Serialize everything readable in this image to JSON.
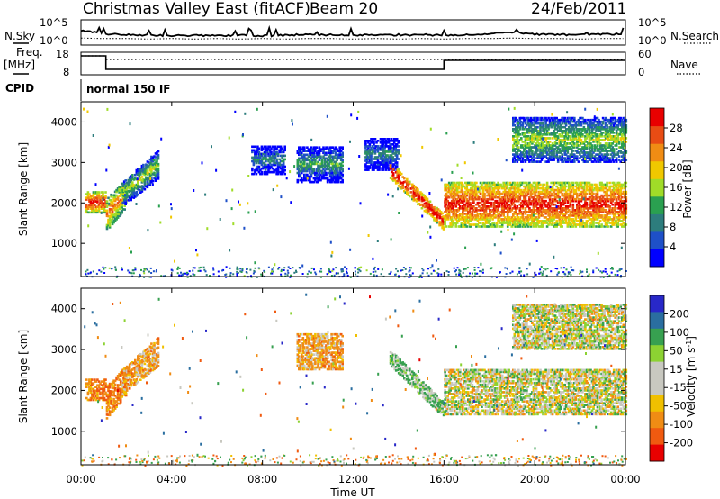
{
  "header": {
    "title": "Christmas Valley East (fitACF)",
    "beam": "Beam 20",
    "date": "24/Feb/2011"
  },
  "panels": {
    "nsky": {
      "label": "N.Sky",
      "right_label": "N.Search",
      "left_ticks": [
        "10^5",
        "10^0"
      ],
      "right_ticks": [
        "10^5",
        "10^0"
      ]
    },
    "freq": {
      "label_line1": "Freq.",
      "label_line2": "[MHz]",
      "right_label": "Nave",
      "left_ticks": [
        "18",
        "8"
      ],
      "right_ticks": [
        "60",
        "0"
      ]
    },
    "cpid": {
      "label": "CPID",
      "text": "normal 150 IF"
    }
  },
  "chart_data": [
    {
      "type": "line",
      "panel": "N.Sky / N.Search",
      "x": [
        "00:00",
        "01:00",
        "02:00",
        "03:00",
        "04:00",
        "05:00",
        "06:00",
        "07:00",
        "08:00",
        "09:00",
        "10:00",
        "11:00",
        "12:00",
        "13:00",
        "14:00",
        "15:00",
        "16:00",
        "17:00",
        "18:00",
        "19:00",
        "20:00",
        "21:00",
        "22:00",
        "23:00",
        "24:00"
      ],
      "series": [
        {
          "name": "N.Sky",
          "values": [
            3.0,
            2.2,
            2.0,
            1.9,
            1.8,
            1.9,
            1.8,
            1.9,
            1.8,
            1.9,
            2.0,
            2.0,
            1.9,
            2.0,
            1.9,
            2.0,
            1.9,
            2.0,
            2.2,
            2.6,
            2.1,
            2.0,
            2.0,
            2.1,
            2.2
          ]
        },
        {
          "name": "N.Search",
          "values": [
            1.3,
            1.2,
            1.2,
            1.1,
            1.2,
            1.1,
            1.2,
            1.1,
            1.2,
            1.1,
            1.2,
            1.2,
            1.1,
            1.2,
            1.1,
            1.2,
            1.1,
            1.2,
            1.2,
            1.3,
            1.2,
            1.2,
            1.1,
            1.2,
            1.2
          ]
        }
      ]
    },
    {
      "type": "line",
      "panel": "Freq. / Nave",
      "series": [
        {
          "name": "Freq.",
          "x_hours": [
            0,
            1.1,
            1.1,
            16,
            16,
            24
          ],
          "values": [
            18,
            18,
            10.5,
            10.5,
            15.5,
            15.5
          ]
        },
        {
          "name": "Nave",
          "x_hours": [
            0,
            1.1,
            1.1,
            24
          ],
          "values": [
            18,
            18,
            16,
            16
          ]
        }
      ]
    },
    {
      "type": "heatmap",
      "title": "Power",
      "ylabel": "Slant Range [km]",
      "ylim": [
        180,
        4500
      ],
      "yticks": [
        "1000",
        "2000",
        "3000",
        "4000"
      ],
      "colorbar": {
        "label": "Power [dB]",
        "ticks": [
          "4",
          "8",
          "12",
          "16",
          "20",
          "24",
          "28"
        ],
        "range": [
          0,
          30
        ]
      },
      "features": [
        {
          "t": [
            0.2,
            1.1
          ],
          "range": [
            1750,
            2250
          ],
          "level": 22
        },
        {
          "t": [
            1.1,
            2.0
          ],
          "range_start": [
            1300,
            2100
          ],
          "range_end": [
            1900,
            2600
          ],
          "level": 18
        },
        {
          "t": [
            1.8,
            3.4
          ],
          "range_start": [
            1900,
            2500
          ],
          "range_end": [
            2600,
            3300
          ],
          "level": 10
        },
        {
          "t": [
            7.5,
            9.0
          ],
          "range": [
            2700,
            3400
          ],
          "level": 4
        },
        {
          "t": [
            9.5,
            11.5
          ],
          "range": [
            2500,
            3400
          ],
          "level": 6
        },
        {
          "t": [
            12.5,
            14.0
          ],
          "range": [
            2800,
            3600
          ],
          "level": 4
        },
        {
          "t": [
            13.6,
            16.0
          ],
          "range_start": [
            2600,
            3000
          ],
          "range_end": [
            1300,
            1700
          ],
          "level": 24
        },
        {
          "t": [
            16.0,
            24.0
          ],
          "range": [
            1400,
            2500
          ],
          "level": 22
        },
        {
          "t": [
            19.0,
            24.0
          ],
          "range": [
            3000,
            4100
          ],
          "level": 10
        }
      ]
    },
    {
      "type": "heatmap",
      "title": "Velocity",
      "ylabel": "Slant Range [km]",
      "xlabel": "Time UT",
      "ylim": [
        180,
        4500
      ],
      "yticks": [
        "1000",
        "2000",
        "3000",
        "4000"
      ],
      "xticks": [
        "00:00",
        "04:00",
        "08:00",
        "12:00",
        "16:00",
        "20:00",
        "00:00"
      ],
      "colorbar": {
        "label": "Velocity [m s^-1]",
        "ticks": [
          "200",
          "100",
          "50",
          "15",
          "-15",
          "-50",
          "-100",
          "-200"
        ],
        "range": [
          -250,
          250
        ]
      },
      "features": [
        {
          "t": [
            0.2,
            1.1
          ],
          "range": [
            1750,
            2250
          ],
          "velocity": -60
        },
        {
          "t": [
            1.1,
            2.0
          ],
          "range_start": [
            1300,
            2100
          ],
          "range_end": [
            1900,
            2600
          ],
          "velocity": -60
        },
        {
          "t": [
            1.8,
            3.4
          ],
          "range_start": [
            1900,
            2500
          ],
          "range_end": [
            2600,
            3300
          ],
          "velocity": -40
        },
        {
          "t": [
            9.5,
            11.5
          ],
          "range": [
            2500,
            3400
          ],
          "velocity": -40
        },
        {
          "t": [
            13.6,
            16.0
          ],
          "range_start": [
            2600,
            3000
          ],
          "range_end": [
            1300,
            1700
          ],
          "velocity": 30
        },
        {
          "t": [
            16.0,
            24.0
          ],
          "range": [
            1400,
            2500
          ],
          "velocity": 0
        },
        {
          "t": [
            19.0,
            24.0
          ],
          "range": [
            3000,
            4100
          ],
          "velocity": 0
        }
      ]
    }
  ]
}
